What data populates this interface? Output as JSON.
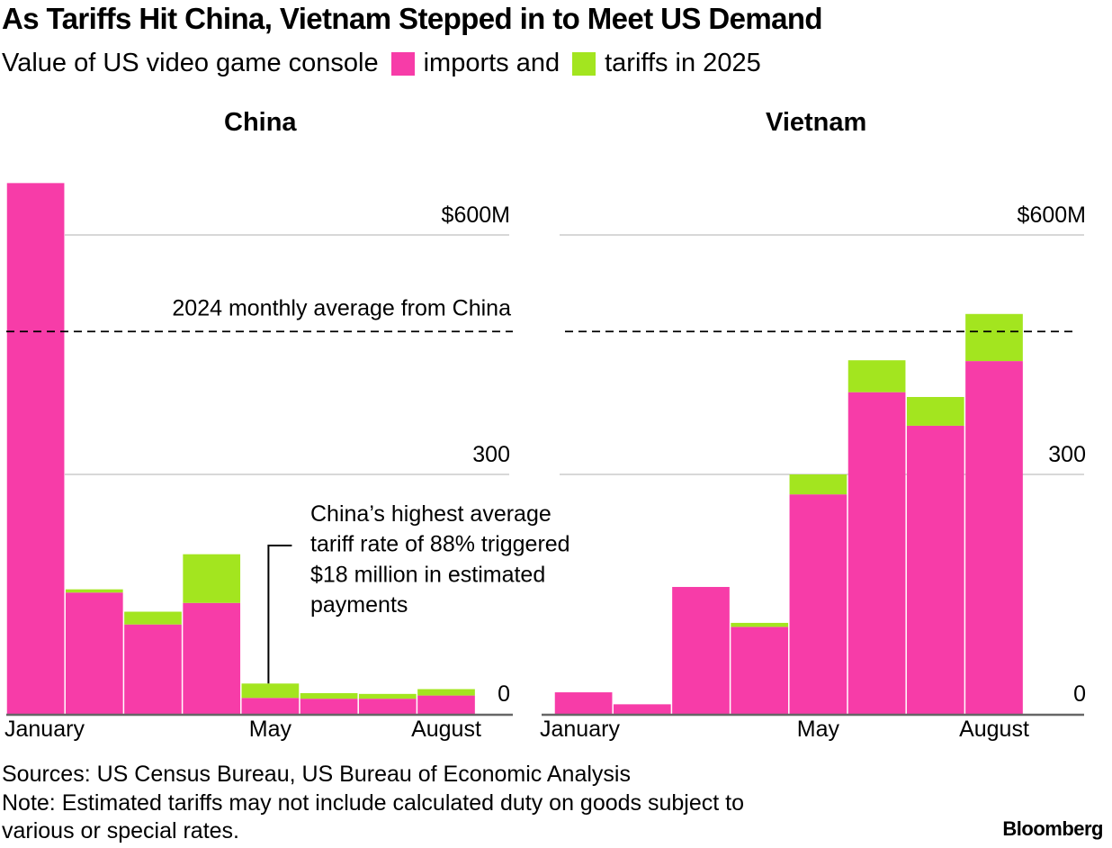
{
  "title": "As Tariffs Hit China, Vietnam Stepped in to Meet US Demand",
  "subtitle": {
    "prefix": "Value of US video game console",
    "legend": [
      {
        "label": "imports and",
        "color": "#f73ca8"
      },
      {
        "label": "tariffs in 2025",
        "color": "#a3e51f"
      }
    ]
  },
  "footer": {
    "sources": "Sources: US Census Bureau, US Bureau of Economic Analysis",
    "note_line1": "Note: Estimated tariffs may not include calculated duty on goods subject to",
    "note_line2": "various or special rates.",
    "brand": "Bloomberg"
  },
  "chart_data": [
    {
      "type": "bar",
      "stacked": true,
      "title": "China",
      "categories": [
        "January",
        "February",
        "March",
        "April",
        "May",
        "June",
        "July",
        "August"
      ],
      "tick_labels": [
        "January",
        "",
        "",
        "",
        "May",
        "",
        "",
        "August"
      ],
      "series": [
        {
          "name": "imports",
          "color": "#f73ca8",
          "values": [
            665,
            152,
            112,
            139,
            20,
            19,
            19,
            23
          ]
        },
        {
          "name": "tariffs",
          "color": "#a3e51f",
          "values": [
            0,
            4,
            16,
            61,
            18,
            7,
            6,
            8
          ]
        }
      ],
      "yticks": [
        {
          "value": 0,
          "label": "0"
        },
        {
          "value": 300,
          "label": "300"
        },
        {
          "value": 600,
          "label": "$600M"
        }
      ],
      "ylim": [
        0,
        670
      ],
      "grid": true,
      "reference_line": {
        "value": 479,
        "label": "2024 monthly average from China",
        "style": "dashed"
      },
      "annotation": {
        "category": "May",
        "lines": [
          "China’s highest average",
          "tariff rate of 88% triggered",
          "$18 million in estimated",
          "payments"
        ]
      }
    },
    {
      "type": "bar",
      "stacked": true,
      "title": "Vietnam",
      "categories": [
        "January",
        "February",
        "March",
        "April",
        "May",
        "June",
        "July",
        "August"
      ],
      "tick_labels": [
        "January",
        "",
        "",
        "",
        "May",
        "",
        "",
        "August"
      ],
      "series": [
        {
          "name": "imports",
          "color": "#f73ca8",
          "values": [
            27,
            12,
            159,
            109,
            275,
            403,
            361,
            442
          ]
        },
        {
          "name": "tariffs",
          "color": "#a3e51f",
          "values": [
            0,
            0,
            0,
            5,
            25,
            40,
            36,
            59
          ]
        }
      ],
      "yticks": [
        {
          "value": 0,
          "label": "0"
        },
        {
          "value": 300,
          "label": "300"
        },
        {
          "value": 600,
          "label": "$600M"
        }
      ],
      "ylim": [
        0,
        670
      ],
      "grid": true,
      "reference_line": {
        "value": 479,
        "label": "",
        "style": "dashed"
      }
    }
  ]
}
